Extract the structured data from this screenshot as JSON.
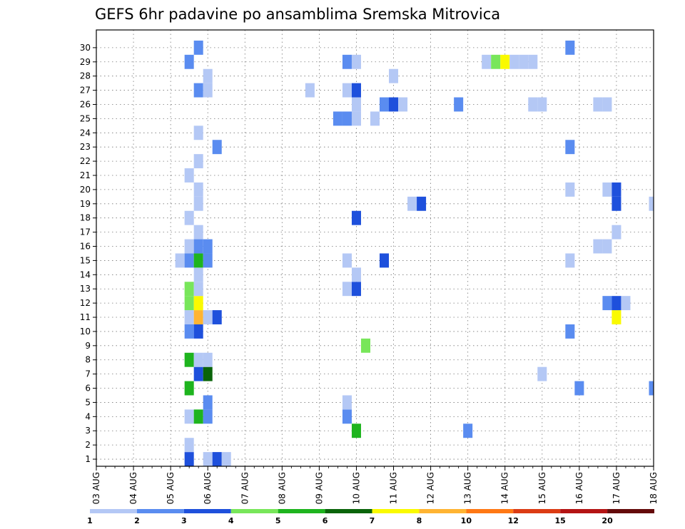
{
  "chart_data": {
    "type": "heatmap",
    "title": "GEFS 6hr padavine po ansamblima Sremska Mitrovica",
    "xlabel": "",
    "ylabel": "",
    "x_ticks": [
      "03 AUG",
      "04 AUG",
      "05 AUG",
      "06 AUG",
      "07 AUG",
      "08 AUG",
      "09 AUG",
      "10 AUG",
      "11 AUG",
      "12 AUG",
      "13 AUG",
      "14 AUG",
      "15 AUG",
      "16 AUG",
      "17 AUG",
      "18 AUG"
    ],
    "y_ticks": [
      "1",
      "2",
      "3",
      "4",
      "5",
      "6",
      "7",
      "8",
      "9",
      "10",
      "11",
      "12",
      "13",
      "14",
      "15",
      "16",
      "17",
      "18",
      "19",
      "20",
      "21",
      "22",
      "23",
      "24",
      "25",
      "26",
      "27",
      "28",
      "29",
      "30"
    ],
    "xlim": [
      0,
      60
    ],
    "ylim": [
      0,
      30.75
    ],
    "grid": true,
    "x_unit": "6-hour steps from 03 AUG 00Z",
    "y_unit": "ensemble member",
    "colorbar": {
      "labels": [
        "1",
        "2",
        "3",
        "4",
        "5",
        "6",
        "7",
        "8",
        "10",
        "12",
        "15",
        "20"
      ],
      "colors": [
        "#b4c8f5",
        "#5a8cf0",
        "#1e50dc",
        "#78e65a",
        "#1eb41e",
        "#0a640a",
        "#fafa00",
        "#ffb432",
        "#ff7814",
        "#dc3c14",
        "#b41414",
        "#640a0a"
      ]
    },
    "cells": [
      {
        "t": 10.0,
        "m": 0,
        "c": 2
      },
      {
        "t": 12.0,
        "m": 0,
        "c": 0
      },
      {
        "t": 13.0,
        "m": 0,
        "c": 2
      },
      {
        "t": 14.0,
        "m": 0,
        "c": 0
      },
      {
        "t": 10.0,
        "m": 1,
        "c": 0
      },
      {
        "t": 28.0,
        "m": 2,
        "c": 4
      },
      {
        "t": 40.0,
        "m": 2,
        "c": 1
      },
      {
        "t": 10.0,
        "m": 3,
        "c": 0
      },
      {
        "t": 11.0,
        "m": 3,
        "c": 4
      },
      {
        "t": 12.0,
        "m": 3,
        "c": 1
      },
      {
        "t": 27.0,
        "m": 3,
        "c": 1
      },
      {
        "t": 12.0,
        "m": 4,
        "c": 1
      },
      {
        "t": 27.0,
        "m": 4,
        "c": 0
      },
      {
        "t": 10.0,
        "m": 5,
        "c": 4
      },
      {
        "t": 52.0,
        "m": 5,
        "c": 1
      },
      {
        "t": 60.0,
        "m": 5,
        "c": 1
      },
      {
        "t": 11.0,
        "m": 6,
        "c": 2
      },
      {
        "t": 12.0,
        "m": 6,
        "c": 5
      },
      {
        "t": 48.0,
        "m": 6,
        "c": 0
      },
      {
        "t": 10.0,
        "m": 7,
        "c": 4
      },
      {
        "t": 11.0,
        "m": 7,
        "c": 0
      },
      {
        "t": 12.0,
        "m": 7,
        "c": 0
      },
      {
        "t": 29.0,
        "m": 8,
        "c": 3
      },
      {
        "t": 10.0,
        "m": 9,
        "c": 1
      },
      {
        "t": 11.0,
        "m": 9,
        "c": 2
      },
      {
        "t": 51.0,
        "m": 9,
        "c": 1
      },
      {
        "t": 10.0,
        "m": 10,
        "c": 0
      },
      {
        "t": 11.0,
        "m": 10,
        "c": 7
      },
      {
        "t": 12.0,
        "m": 10,
        "c": 0
      },
      {
        "t": 13.0,
        "m": 10,
        "c": 2
      },
      {
        "t": 56.0,
        "m": 10,
        "c": 6
      },
      {
        "t": 10.0,
        "m": 11,
        "c": 3
      },
      {
        "t": 11.0,
        "m": 11,
        "c": 6
      },
      {
        "t": 55.0,
        "m": 11,
        "c": 1
      },
      {
        "t": 56.0,
        "m": 11,
        "c": 2
      },
      {
        "t": 57.0,
        "m": 11,
        "c": 0
      },
      {
        "t": 10.0,
        "m": 12,
        "c": 3
      },
      {
        "t": 11.0,
        "m": 12,
        "c": 0
      },
      {
        "t": 27.0,
        "m": 12,
        "c": 0
      },
      {
        "t": 28.0,
        "m": 12,
        "c": 2
      },
      {
        "t": 11.0,
        "m": 13,
        "c": 0
      },
      {
        "t": 28.0,
        "m": 13,
        "c": 0
      },
      {
        "t": 9.0,
        "m": 14,
        "c": 0
      },
      {
        "t": 10.0,
        "m": 14,
        "c": 1
      },
      {
        "t": 11.0,
        "m": 14,
        "c": 4
      },
      {
        "t": 12.0,
        "m": 14,
        "c": 1
      },
      {
        "t": 27.0,
        "m": 14,
        "c": 0
      },
      {
        "t": 31.0,
        "m": 14,
        "c": 2
      },
      {
        "t": 51.0,
        "m": 14,
        "c": 0
      },
      {
        "t": 10.0,
        "m": 15,
        "c": 0
      },
      {
        "t": 11.0,
        "m": 15,
        "c": 1
      },
      {
        "t": 12.0,
        "m": 15,
        "c": 1
      },
      {
        "t": 54.0,
        "m": 15,
        "c": 0
      },
      {
        "t": 55.0,
        "m": 15,
        "c": 0
      },
      {
        "t": 11.0,
        "m": 16,
        "c": 0
      },
      {
        "t": 56.0,
        "m": 16,
        "c": 0
      },
      {
        "t": 10.0,
        "m": 17,
        "c": 0
      },
      {
        "t": 28.0,
        "m": 17,
        "c": 2
      },
      {
        "t": 11.0,
        "m": 18,
        "c": 0
      },
      {
        "t": 34.0,
        "m": 18,
        "c": 0
      },
      {
        "t": 35.0,
        "m": 18,
        "c": 2
      },
      {
        "t": 56.0,
        "m": 18,
        "c": 2
      },
      {
        "t": 60.0,
        "m": 18,
        "c": 0
      },
      {
        "t": 11.0,
        "m": 19,
        "c": 0
      },
      {
        "t": 51.0,
        "m": 19,
        "c": 0
      },
      {
        "t": 55.0,
        "m": 19,
        "c": 0
      },
      {
        "t": 56.0,
        "m": 19,
        "c": 2
      },
      {
        "t": 10.0,
        "m": 20,
        "c": 0
      },
      {
        "t": 11.0,
        "m": 21,
        "c": 0
      },
      {
        "t": 13.0,
        "m": 22,
        "c": 1
      },
      {
        "t": 51.0,
        "m": 22,
        "c": 1
      },
      {
        "t": 11.0,
        "m": 23,
        "c": 0
      },
      {
        "t": 26.0,
        "m": 24,
        "c": 1
      },
      {
        "t": 27.0,
        "m": 24,
        "c": 1
      },
      {
        "t": 28.0,
        "m": 24,
        "c": 0
      },
      {
        "t": 30.0,
        "m": 24,
        "c": 0
      },
      {
        "t": 28.0,
        "m": 25,
        "c": 0
      },
      {
        "t": 31.0,
        "m": 25,
        "c": 1
      },
      {
        "t": 32.0,
        "m": 25,
        "c": 2
      },
      {
        "t": 33.0,
        "m": 25,
        "c": 0
      },
      {
        "t": 39.0,
        "m": 25,
        "c": 1
      },
      {
        "t": 47.0,
        "m": 25,
        "c": 0
      },
      {
        "t": 48.0,
        "m": 25,
        "c": 0
      },
      {
        "t": 54.0,
        "m": 25,
        "c": 0
      },
      {
        "t": 55.0,
        "m": 25,
        "c": 0
      },
      {
        "t": 11.0,
        "m": 26,
        "c": 1
      },
      {
        "t": 12.0,
        "m": 26,
        "c": 0
      },
      {
        "t": 23.0,
        "m": 26,
        "c": 0
      },
      {
        "t": 27.0,
        "m": 26,
        "c": 0
      },
      {
        "t": 28.0,
        "m": 26,
        "c": 2
      },
      {
        "t": 12.0,
        "m": 27,
        "c": 0
      },
      {
        "t": 32.0,
        "m": 27,
        "c": 0
      },
      {
        "t": 10.0,
        "m": 28,
        "c": 1
      },
      {
        "t": 27.0,
        "m": 28,
        "c": 1
      },
      {
        "t": 28.0,
        "m": 28,
        "c": 0
      },
      {
        "t": 42.0,
        "m": 28,
        "c": 0
      },
      {
        "t": 43.0,
        "m": 28,
        "c": 3
      },
      {
        "t": 44.0,
        "m": 28,
        "c": 6
      },
      {
        "t": 45.0,
        "m": 28,
        "c": 0
      },
      {
        "t": 46.0,
        "m": 28,
        "c": 0
      },
      {
        "t": 47.0,
        "m": 28,
        "c": 0
      },
      {
        "t": 11.0,
        "m": 29,
        "c": 1
      },
      {
        "t": 51.0,
        "m": 29,
        "c": 1
      }
    ]
  }
}
